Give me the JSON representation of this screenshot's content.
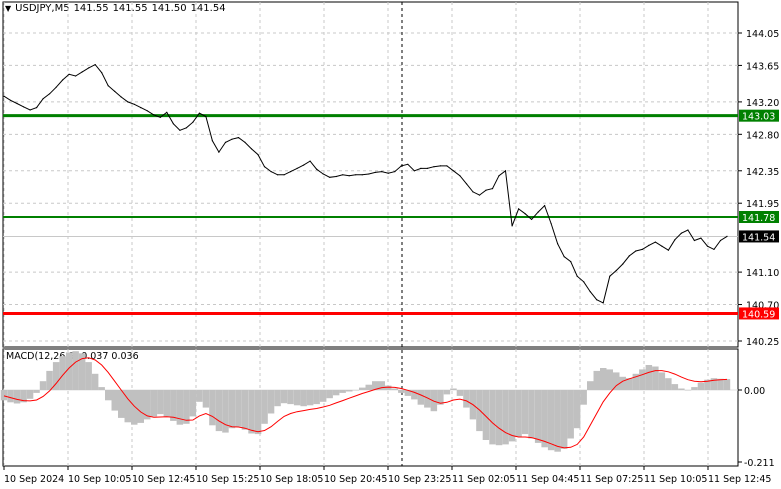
{
  "header": {
    "arrow": "▼",
    "symbol": "USDJPY,M5",
    "open": "141.55",
    "high": "141.55",
    "low": "141.50",
    "close": "141.54"
  },
  "macd": {
    "label": "MACD(12,26,9)",
    "main": "0.037",
    "signal": "0.036",
    "axis_labels": [
      "0.00",
      "-0.211"
    ]
  },
  "colors": {
    "price_line": "#000000",
    "green_level": "#008000",
    "red_level": "#ff0000",
    "histogram": "#c0c0c0",
    "signal": "#ff0000",
    "grid": "#c8c8c8"
  },
  "chart_data": {
    "type": "line",
    "y_ticks": [
      "144.05",
      "143.65",
      "143.20",
      "142.80",
      "142.35",
      "141.95",
      "141.10",
      "140.70",
      "140.25"
    ],
    "x_ticks": [
      "10 Sep 2024",
      "10 Sep 10:05",
      "10 Sep 12:45",
      "10 Sep 15:25",
      "10 Sep 18:05",
      "10 Sep 20:45",
      "10 Sep 23:25",
      "11 Sep 02:05",
      "11 Sep 04:45",
      "11 Sep 07:25",
      "11 Sep 10:05",
      "11 Sep 12:45"
    ],
    "ylim": [
      140.25,
      144.25
    ],
    "levels": [
      {
        "label": "143.03",
        "value": 143.03,
        "color": "green"
      },
      {
        "label": "141.78",
        "value": 141.78,
        "color": "green"
      },
      {
        "label": "140.59",
        "value": 140.59,
        "color": "red"
      }
    ],
    "current_price": {
      "label": "141.54",
      "value": 141.54
    },
    "series": [
      {
        "values": [
          143.27,
          143.22,
          143.18,
          143.14,
          143.1,
          143.13,
          143.24,
          143.3,
          143.38,
          143.47,
          143.54,
          143.52,
          143.57,
          143.62,
          143.66,
          143.56,
          143.4,
          143.33,
          143.26,
          143.2,
          143.17,
          143.13,
          143.09,
          143.04,
          143.01,
          143.07,
          142.93,
          142.85,
          142.88,
          142.95,
          143.06,
          143.02,
          142.72,
          142.58,
          142.7,
          142.74,
          142.76,
          142.7,
          142.62,
          142.55,
          142.4,
          142.34,
          142.3,
          142.3,
          142.34,
          142.38,
          142.42,
          142.47,
          142.37,
          142.31,
          142.27,
          142.28,
          142.3,
          142.29,
          142.3,
          142.3,
          142.31,
          142.33,
          142.34,
          142.32,
          142.34,
          142.41,
          142.43,
          142.35,
          142.38,
          142.38,
          142.4,
          142.41,
          142.41,
          142.35,
          142.29,
          142.19,
          142.09,
          142.05,
          142.11,
          142.13,
          142.29,
          142.35,
          141.67,
          141.88,
          141.82,
          141.75,
          141.84,
          141.92,
          141.7,
          141.45,
          141.29,
          141.23,
          141.05,
          140.98,
          140.86,
          140.76,
          140.72,
          141.05,
          141.12,
          141.2,
          141.3,
          141.36,
          141.38,
          141.43,
          141.47,
          141.42,
          141.37,
          141.5,
          141.58,
          141.62,
          141.49,
          141.52,
          141.42,
          141.38,
          141.49,
          141.54
        ]
      }
    ],
    "macd_histogram": [
      -0.035,
      -0.042,
      -0.046,
      -0.042,
      -0.03,
      -0.01,
      0.03,
      0.065,
      0.095,
      0.115,
      0.128,
      0.132,
      0.125,
      0.095,
      0.055,
      0.01,
      -0.035,
      -0.07,
      -0.095,
      -0.11,
      -0.118,
      -0.112,
      -0.1,
      -0.09,
      -0.082,
      -0.09,
      -0.105,
      -0.118,
      -0.115,
      -0.09,
      -0.04,
      -0.06,
      -0.12,
      -0.14,
      -0.145,
      -0.13,
      -0.125,
      -0.135,
      -0.148,
      -0.15,
      -0.115,
      -0.08,
      -0.055,
      -0.045,
      -0.048,
      -0.052,
      -0.055,
      -0.052,
      -0.048,
      -0.04,
      -0.028,
      -0.018,
      -0.01,
      -0.005,
      0.0,
      0.008,
      0.018,
      0.03,
      0.03,
      0.015,
      0.005,
      -0.01,
      -0.02,
      -0.032,
      -0.05,
      -0.06,
      -0.072,
      -0.05,
      -0.015,
      0.005,
      -0.02,
      -0.06,
      -0.1,
      -0.14,
      -0.17,
      -0.185,
      -0.188,
      -0.185,
      -0.175,
      -0.16,
      -0.15,
      -0.165,
      -0.18,
      -0.195,
      -0.205,
      -0.21,
      -0.2,
      -0.165,
      -0.13,
      -0.05,
      0.03,
      0.065,
      0.075,
      0.07,
      0.06,
      0.045,
      0.04,
      0.055,
      0.07,
      0.085,
      0.08,
      0.06,
      0.04,
      0.02,
      0.005,
      0.0,
      0.01,
      0.025,
      0.035,
      0.04,
      0.038,
      0.037
    ],
    "macd_signal": [
      -0.02,
      -0.026,
      -0.032,
      -0.036,
      -0.037,
      -0.034,
      -0.022,
      -0.003,
      0.022,
      0.05,
      0.075,
      0.095,
      0.107,
      0.11,
      0.102,
      0.085,
      0.06,
      0.03,
      0.0,
      -0.03,
      -0.055,
      -0.075,
      -0.088,
      -0.093,
      -0.092,
      -0.091,
      -0.093,
      -0.098,
      -0.103,
      -0.102,
      -0.088,
      -0.08,
      -0.09,
      -0.105,
      -0.118,
      -0.125,
      -0.126,
      -0.13,
      -0.137,
      -0.142,
      -0.138,
      -0.125,
      -0.107,
      -0.09,
      -0.08,
      -0.074,
      -0.07,
      -0.066,
      -0.063,
      -0.058,
      -0.052,
      -0.044,
      -0.036,
      -0.028,
      -0.02,
      -0.012,
      -0.005,
      0.002,
      0.008,
      0.01,
      0.009,
      0.005,
      -0.001,
      -0.008,
      -0.017,
      -0.027,
      -0.038,
      -0.045,
      -0.042,
      -0.034,
      -0.031,
      -0.037,
      -0.05,
      -0.068,
      -0.09,
      -0.112,
      -0.13,
      -0.145,
      -0.155,
      -0.16,
      -0.16,
      -0.162,
      -0.168,
      -0.175,
      -0.183,
      -0.192,
      -0.197,
      -0.195,
      -0.185,
      -0.16,
      -0.12,
      -0.08,
      -0.04,
      -0.01,
      0.015,
      0.03,
      0.038,
      0.045,
      0.052,
      0.06,
      0.066,
      0.066,
      0.062,
      0.054,
      0.044,
      0.035,
      0.03,
      0.028,
      0.03,
      0.033,
      0.035,
      0.036
    ],
    "macd_ylim": [
      -0.23,
      0.16
    ],
    "grid": true
  }
}
